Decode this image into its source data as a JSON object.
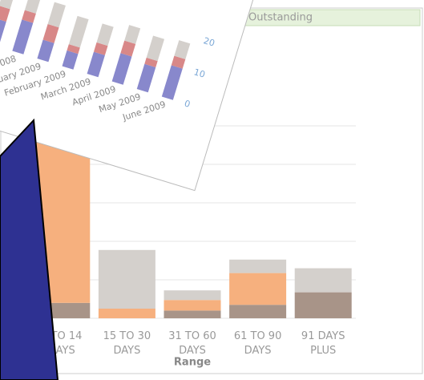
{
  "chart_data": [
    {
      "type": "stacked-bar",
      "title": "Outstanding",
      "x_label": "Range",
      "categories": [
        "1 TO 14 DAYS",
        "15 TO 30 DAYS",
        "31 TO 60 DAYS",
        "61 TO 90 DAYS",
        "91 DAYS PLUS"
      ],
      "series": [
        {
          "color": "#a89488",
          "values": [
            1.6,
            0,
            0.8,
            1.4,
            2.7
          ]
        },
        {
          "color": "#f6b07e",
          "values": [
            22.4,
            1,
            1.1,
            3.3,
            0
          ]
        },
        {
          "color": "#d4d0cc",
          "values": [
            0,
            6.1,
            1,
            1.4,
            2.5
          ]
        }
      ],
      "ylim": [
        0,
        24
      ],
      "yticks": [
        0,
        4,
        8,
        12,
        16,
        20
      ],
      "grid": true
    },
    {
      "type": "stacked-bar",
      "x_label": "Month",
      "categories": [
        "2008",
        "mber 2008",
        "January 2009",
        "February 2009",
        "March 2009",
        "April 2009",
        "May 2009",
        "June 2009"
      ],
      "series": [
        {
          "color": "#8888cc",
          "values": [
            8,
            10,
            6,
            5,
            7,
            9,
            8,
            10
          ]
        },
        {
          "color": "#d88888",
          "values": [
            4,
            3,
            5,
            2,
            3,
            4,
            2,
            3
          ]
        },
        {
          "color": "#d4d0cc",
          "values": [
            6,
            5,
            7,
            9,
            6,
            5,
            7,
            5
          ]
        }
      ],
      "ylim": [
        0,
        22
      ],
      "yticks": [
        0,
        10,
        20
      ]
    }
  ]
}
